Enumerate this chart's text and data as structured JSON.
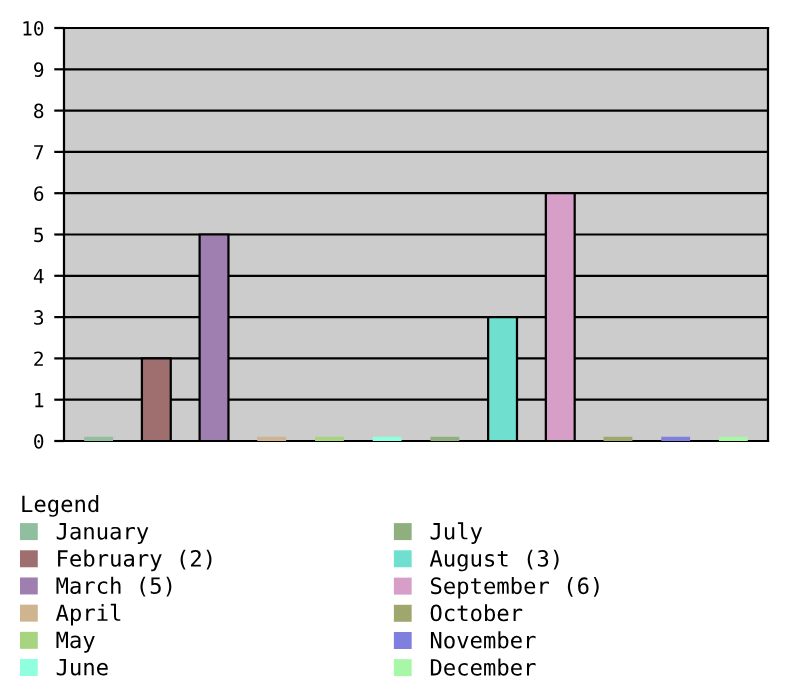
{
  "chart_data": {
    "type": "bar",
    "legend_title": "Legend",
    "legend": "bottom",
    "grid": "y",
    "categories": [
      null,
      null,
      null,
      null,
      null,
      null,
      null,
      null,
      null,
      null,
      null,
      null
    ],
    "ylim": [
      0,
      10
    ],
    "yticks": [
      0,
      1,
      2,
      3,
      4,
      5,
      6,
      7,
      8,
      9,
      10
    ],
    "series": [
      {
        "name": "January",
        "color": "#8fbf9f",
        "values": [
          0,
          null,
          null,
          null,
          null,
          null,
          null,
          null,
          null,
          null,
          null,
          null
        ]
      },
      {
        "name": "February (2)",
        "color": "#9f6f6f",
        "values": [
          null,
          2,
          null,
          null,
          null,
          null,
          null,
          null,
          null,
          null,
          null,
          null
        ]
      },
      {
        "name": "March (5)",
        "color": "#9f7faf",
        "values": [
          null,
          null,
          5,
          null,
          null,
          null,
          null,
          null,
          null,
          null,
          null,
          null
        ]
      },
      {
        "name": "April",
        "color": "#cfb58f",
        "values": [
          null,
          null,
          null,
          0,
          null,
          null,
          null,
          null,
          null,
          null,
          null,
          null
        ]
      },
      {
        "name": "May",
        "color": "#a7d47f",
        "values": [
          null,
          null,
          null,
          null,
          0,
          null,
          null,
          null,
          null,
          null,
          null,
          null
        ]
      },
      {
        "name": "June",
        "color": "#8fffdf",
        "values": [
          null,
          null,
          null,
          null,
          null,
          0,
          null,
          null,
          null,
          null,
          null,
          null
        ]
      },
      {
        "name": "July",
        "color": "#8faf7f",
        "values": [
          null,
          null,
          null,
          null,
          null,
          null,
          0,
          null,
          null,
          null,
          null,
          null
        ]
      },
      {
        "name": "August (3)",
        "color": "#6fdfcf",
        "values": [
          null,
          null,
          null,
          null,
          null,
          null,
          null,
          3,
          null,
          null,
          null,
          null
        ]
      },
      {
        "name": "September (6)",
        "color": "#d79fc7",
        "values": [
          null,
          null,
          null,
          null,
          null,
          null,
          null,
          null,
          6,
          null,
          null,
          null
        ]
      },
      {
        "name": "October",
        "color": "#9fa76f",
        "values": [
          null,
          null,
          null,
          null,
          null,
          null,
          null,
          null,
          null,
          0,
          null,
          null
        ]
      },
      {
        "name": "November",
        "color": "#7f7fdf",
        "values": [
          null,
          null,
          null,
          null,
          null,
          null,
          null,
          null,
          null,
          null,
          0,
          null
        ]
      },
      {
        "name": "December",
        "color": "#a7f7a7",
        "values": [
          null,
          null,
          null,
          null,
          null,
          null,
          null,
          null,
          null,
          null,
          null,
          0
        ]
      }
    ]
  }
}
